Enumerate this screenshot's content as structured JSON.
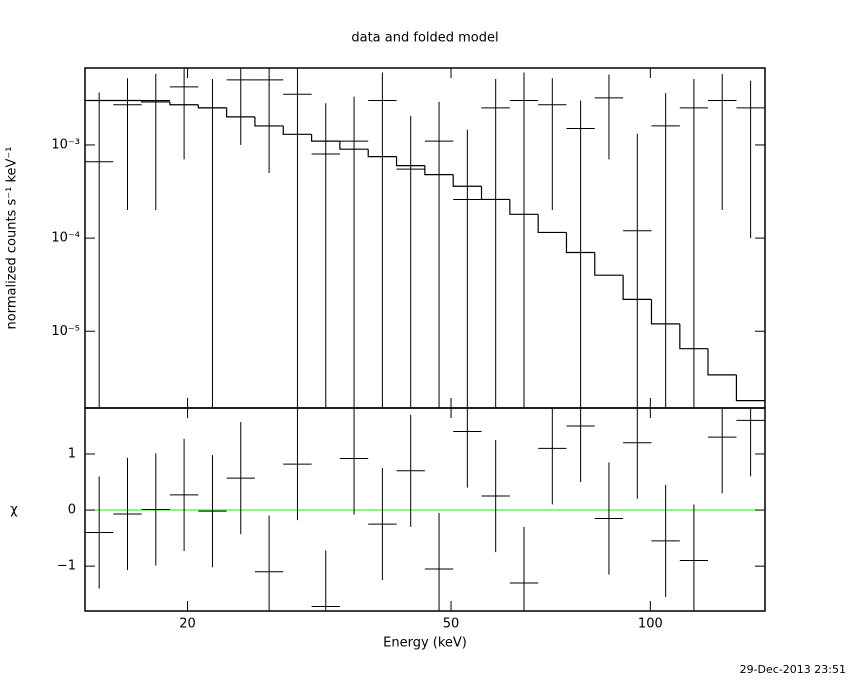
{
  "chart_data": {
    "type": "spectrum",
    "title": "data and folded model",
    "xlabel": "Energy (keV)",
    "timestamp": "29-Dec-2013 23:51",
    "log_x": true,
    "xlim": [
      14,
      149
    ],
    "xticks": [
      20,
      50,
      100
    ],
    "bins": [
      14,
      15.45,
      17.05,
      18.81,
      20.76,
      22.91,
      25.28,
      27.9,
      30.79,
      33.97,
      37.49,
      41.37,
      45.65,
      50.38,
      55.59,
      61.35,
      67.7,
      74.7,
      82.43,
      90.97,
      100.4,
      110.8,
      122.2,
      134.9,
      148.9
    ],
    "top": {
      "ylabel": "normalized counts s⁻¹ keV⁻¹",
      "log_y": true,
      "ylim": [
        1.5e-06,
        0.0067
      ],
      "yticks": [
        {
          "value": 0.001,
          "label": "10⁻³"
        },
        {
          "value": 0.0001,
          "label": "10⁻⁴"
        },
        {
          "value": 1e-05,
          "label": "10⁻⁵"
        }
      ],
      "data": {
        "values": [
          0.00066,
          0.0027,
          0.003,
          0.0042,
          0.0025,
          0.005,
          0.005,
          0.0035,
          0.0008,
          0.0011,
          0.003,
          0.00055,
          0.0011,
          0.00026,
          0.0025,
          0.003,
          0.0027,
          0.0015,
          0.0032,
          0.00012,
          0.0016,
          0.0025,
          0.003,
          0.0025
        ],
        "errors": [
          0.003,
          0.0025,
          0.0028,
          0.0035,
          0.0026,
          0.004,
          0.0045,
          0.0038,
          0.002,
          0.0022,
          0.003,
          0.0015,
          0.0018,
          0.0012,
          0.0026,
          0.003,
          0.0025,
          0.0015,
          0.0025,
          0.0012,
          0.002,
          0.0026,
          0.0028,
          0.0024
        ],
        "color": "#000000"
      },
      "model": {
        "values": [
          0.003,
          0.003,
          0.0029,
          0.0027,
          0.0025,
          0.002,
          0.0016,
          0.0013,
          0.0011,
          0.0009,
          0.00075,
          0.0006,
          0.00048,
          0.00036,
          0.00026,
          0.00018,
          0.000115,
          7e-05,
          4e-05,
          2.2e-05,
          1.2e-05,
          6.5e-06,
          3.4e-06,
          1.8e-06
        ],
        "color": "#000000"
      }
    },
    "bottom": {
      "ylabel": "χ",
      "ylim": [
        -1.8,
        1.82
      ],
      "yticks": [
        {
          "value": -1,
          "label": "−1"
        },
        0,
        1
      ],
      "values": [
        -0.4,
        -0.07,
        0.01,
        0.27,
        -0.02,
        0.57,
        -1.1,
        0.82,
        -1.72,
        0.92,
        -0.25,
        0.7,
        -1.05,
        1.4,
        0.25,
        -1.3,
        1.1,
        1.5,
        -0.15,
        1.2,
        -0.55,
        -0.9,
        1.3,
        1.6
      ],
      "errors": [
        1,
        1,
        1,
        1,
        1,
        1,
        1,
        1,
        1,
        1,
        1,
        1,
        1,
        1,
        1,
        1,
        1,
        1,
        1,
        1,
        1,
        1,
        1,
        1
      ],
      "zero_line_color": "#00ff00"
    }
  }
}
